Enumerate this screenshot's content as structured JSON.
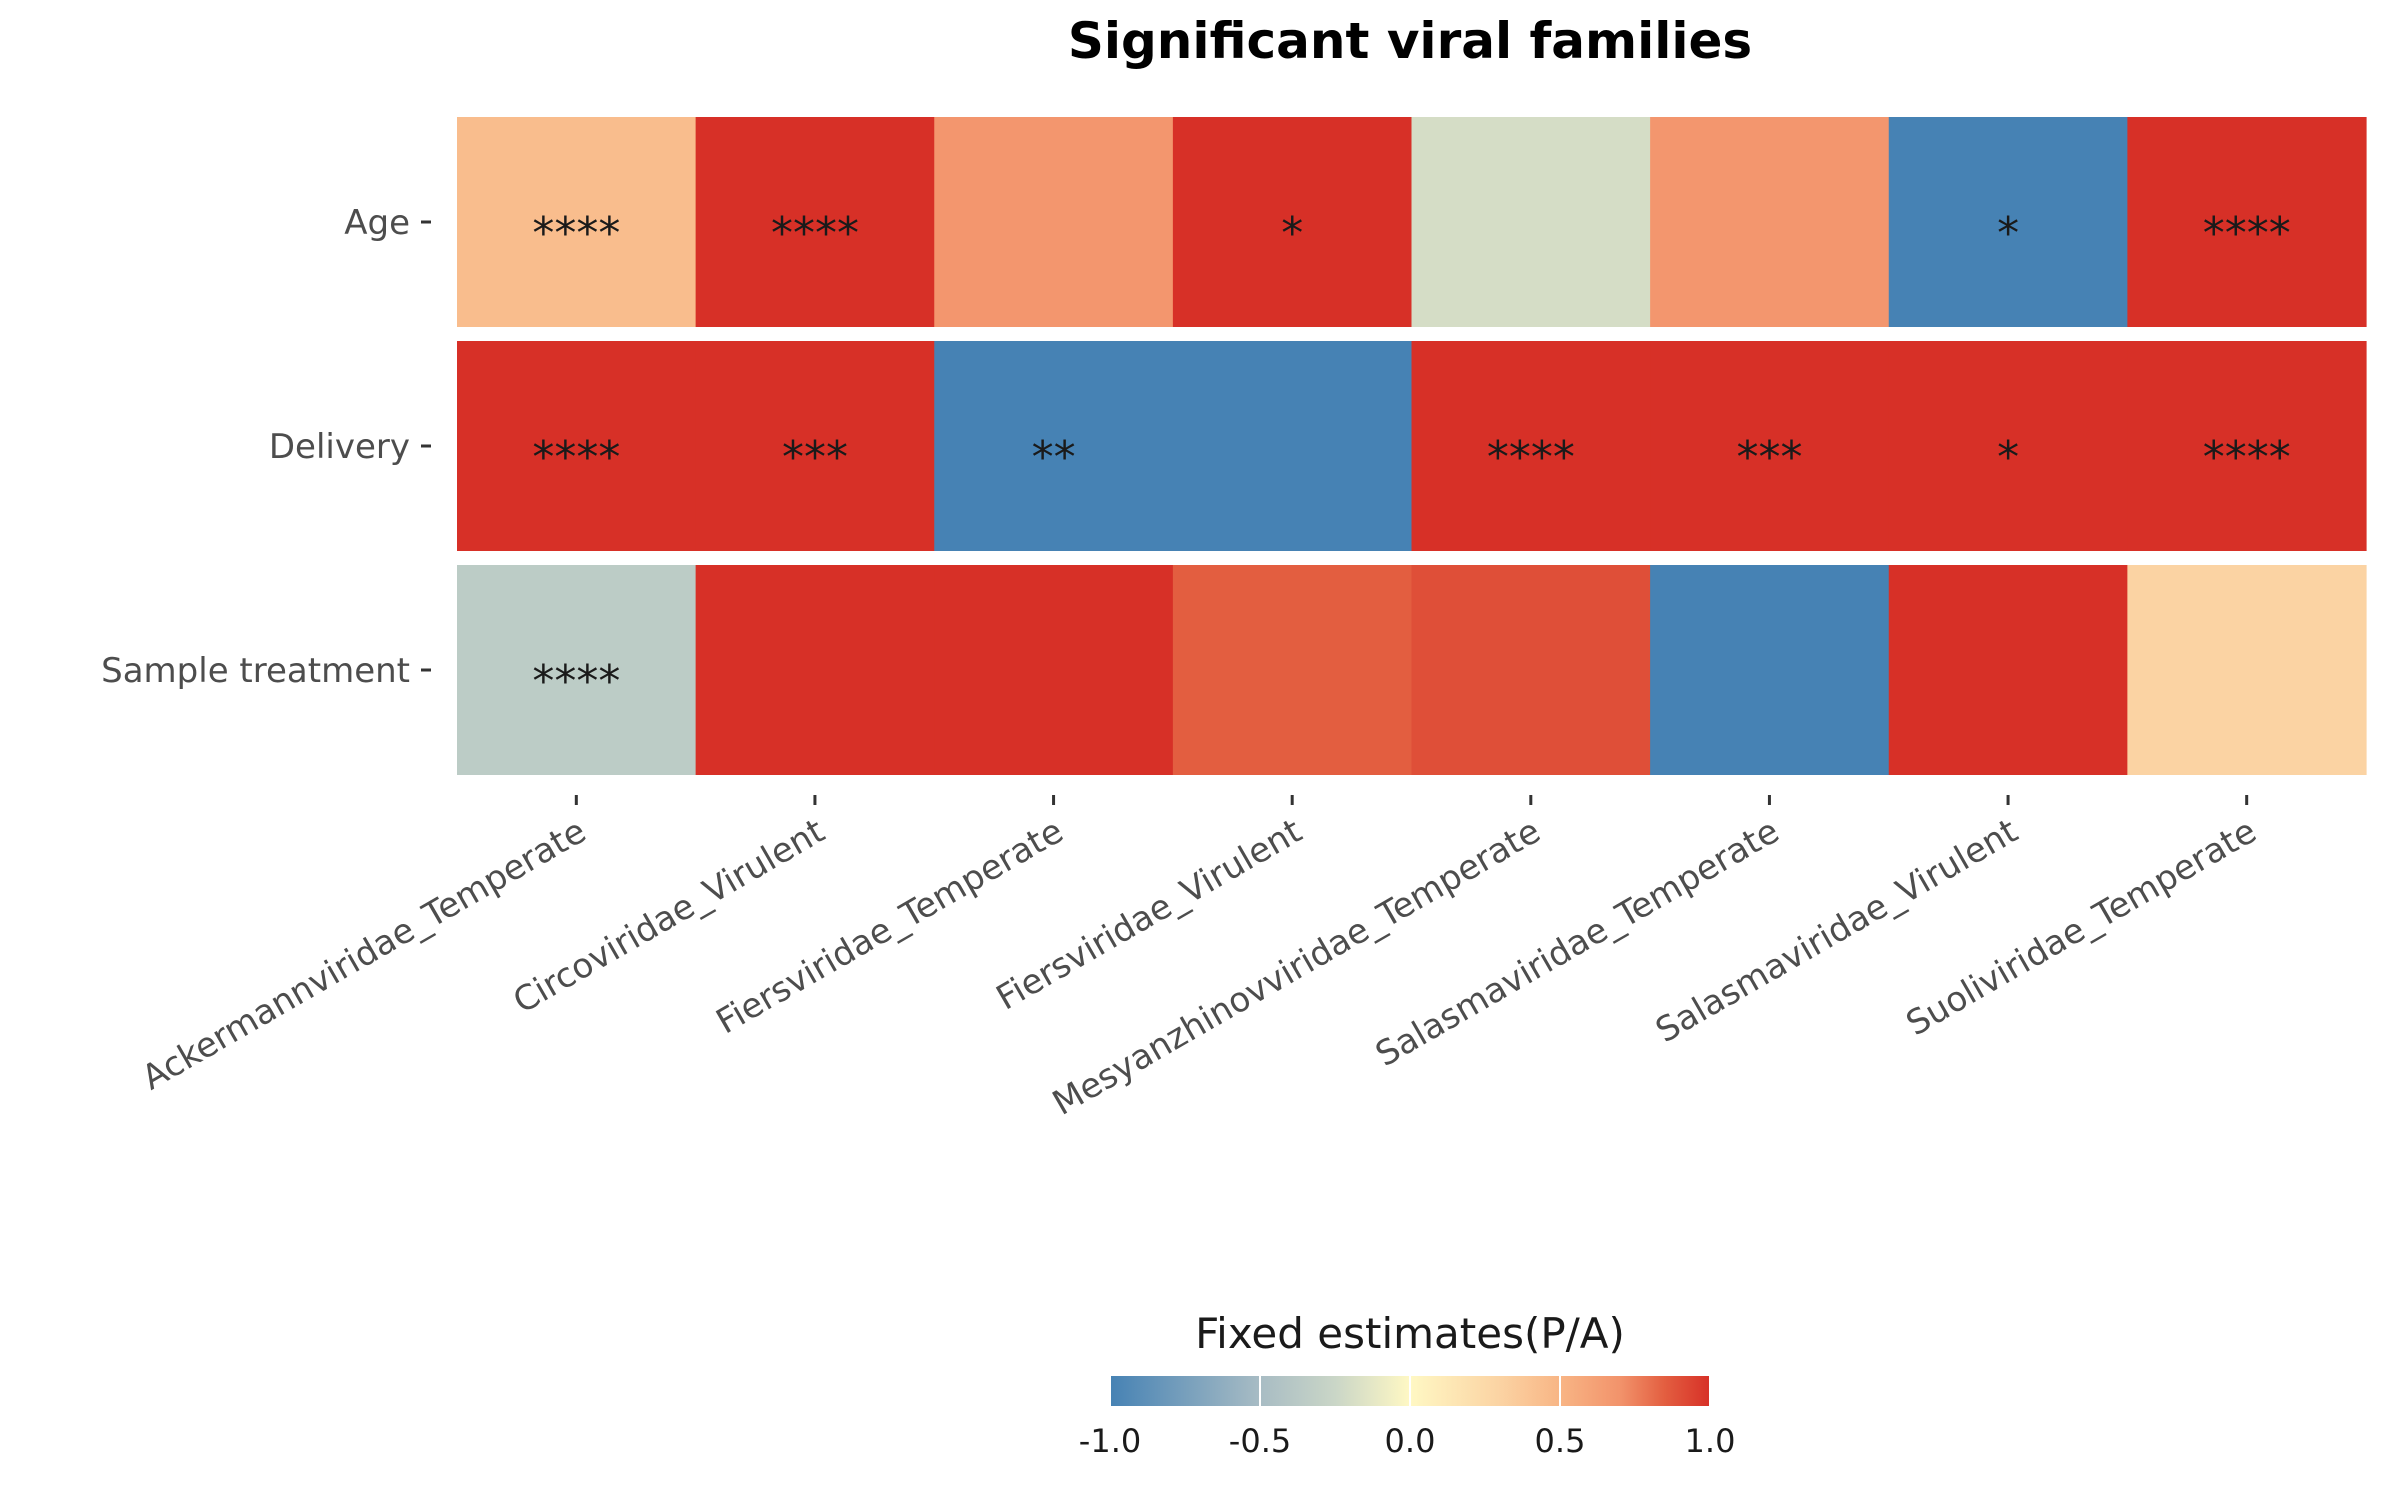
{
  "chart_data": {
    "type": "heatmap",
    "title": "Significant viral families",
    "rows": [
      "Age",
      "Delivery",
      "Sample treatment"
    ],
    "columns": [
      "Ackermannviridae_Temperate",
      "Circoviridae_Virulent",
      "Fiersviridae_Temperate",
      "Fiersviridae_Virulent",
      "Mesyanzhinovviridae_Temperate",
      "Salasmaviridae_Temperate",
      "Salasmaviridae_Virulent",
      "Suoliviridae_Temperate"
    ],
    "values": [
      [
        0.45,
        1.0,
        0.68,
        1.0,
        -0.2,
        0.68,
        -1.0,
        1.0
      ],
      [
        1.0,
        1.0,
        -1.0,
        -1.0,
        1.0,
        1.0,
        1.0,
        1.0
      ],
      [
        -0.35,
        1.0,
        1.0,
        0.85,
        0.9,
        -1.0,
        1.0,
        0.3
      ]
    ],
    "significance": [
      [
        "****",
        "****",
        "",
        "*",
        "",
        "",
        "*",
        "****"
      ],
      [
        "****",
        "***",
        "**",
        "",
        "****",
        "***",
        "*",
        "****"
      ],
      [
        "****",
        "",
        "",
        "",
        "",
        "",
        "",
        ""
      ]
    ],
    "legend": {
      "title": "Fixed estimates(P/A)",
      "ticks": [
        "-1.0",
        "-0.5",
        "0.0",
        "0.5",
        "1.0"
      ],
      "tick_values": [
        -1.0,
        -0.5,
        0.0,
        0.5,
        1.0
      ],
      "range": [
        -1.0,
        1.0
      ],
      "placement": "bottom"
    },
    "palette": [
      "#4682b4",
      "#fff8c4",
      "#d73027"
    ],
    "scale_stops": [
      {
        "v": -1.0,
        "c": "#4682b4"
      },
      {
        "v": -0.5,
        "c": "#a8bcc4"
      },
      {
        "v": -0.25,
        "c": "#cad6c7"
      },
      {
        "v": 0.0,
        "c": "#fff8c4"
      },
      {
        "v": 0.3,
        "c": "#fbd3a3"
      },
      {
        "v": 0.5,
        "c": "#f8b585"
      },
      {
        "v": 0.7,
        "c": "#f2936b"
      },
      {
        "v": 0.85,
        "c": "#e35e40"
      },
      {
        "v": 1.0,
        "c": "#d73027"
      }
    ]
  }
}
